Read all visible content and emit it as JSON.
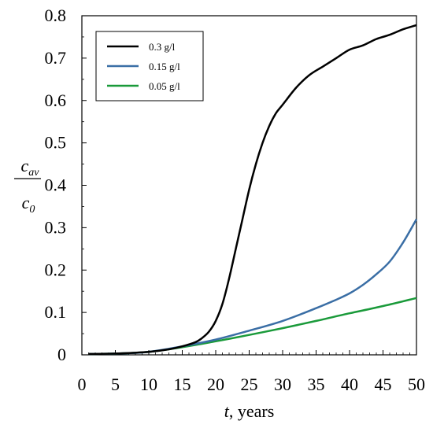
{
  "chart_data": {
    "type": "line",
    "xlabel": {
      "var": "t",
      "rest": ", years"
    },
    "ylabel": {
      "numerator": "c",
      "numerator_sub": "av",
      "denominator": "c",
      "denominator_sub": "0"
    },
    "xlim": [
      0,
      50
    ],
    "ylim": [
      0,
      0.8
    ],
    "x_ticks": [
      0,
      5,
      10,
      15,
      20,
      25,
      30,
      35,
      40,
      45,
      50
    ],
    "y_ticks": [
      0,
      0.1,
      0.2,
      0.3,
      0.4,
      0.5,
      0.6,
      0.7,
      0.8
    ],
    "grid": false,
    "legend_position": "top-left",
    "series": [
      {
        "name": "0.3 g/l",
        "color": "#000000",
        "x": [
          1,
          5,
          10,
          13,
          15,
          17,
          18,
          19,
          20,
          21,
          22,
          23,
          24,
          25,
          26,
          27,
          28,
          29,
          30,
          32,
          34,
          36,
          38,
          40,
          42,
          44,
          46,
          48,
          50
        ],
        "y": [
          0.002,
          0.003,
          0.007,
          0.013,
          0.02,
          0.03,
          0.04,
          0.055,
          0.08,
          0.12,
          0.18,
          0.25,
          0.32,
          0.39,
          0.45,
          0.5,
          0.54,
          0.57,
          0.59,
          0.63,
          0.66,
          0.68,
          0.7,
          0.72,
          0.73,
          0.745,
          0.755,
          0.768,
          0.778
        ]
      },
      {
        "name": "0.15 g/l",
        "color": "#3a6ea5",
        "x": [
          1,
          5,
          10,
          15,
          20,
          25,
          30,
          35,
          38,
          40,
          42,
          44,
          46,
          48,
          50
        ],
        "y": [
          0.002,
          0.003,
          0.007,
          0.02,
          0.036,
          0.057,
          0.08,
          0.11,
          0.13,
          0.145,
          0.165,
          0.19,
          0.22,
          0.265,
          0.32
        ]
      },
      {
        "name": "0.05 g/l",
        "color": "#1a9a3a",
        "x": [
          1,
          5,
          10,
          15,
          20,
          25,
          30,
          35,
          40,
          45,
          50
        ],
        "y": [
          0.002,
          0.003,
          0.007,
          0.018,
          0.032,
          0.047,
          0.063,
          0.08,
          0.098,
          0.115,
          0.134
        ]
      }
    ]
  }
}
